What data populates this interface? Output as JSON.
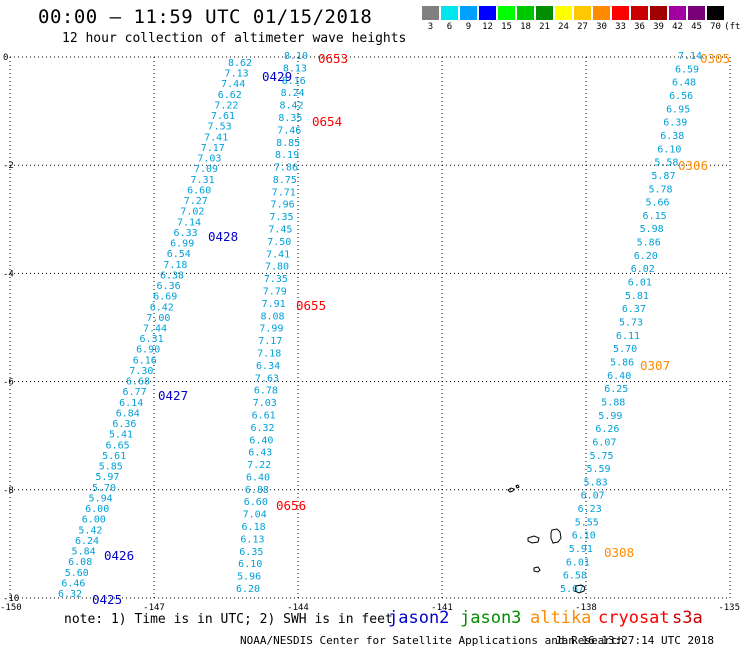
{
  "header": {
    "title": "00:00 – 11:59 UTC 01/15/2018",
    "subtitle": "12 hour collection of altimeter wave heights"
  },
  "legend": {
    "unit": "(ft)",
    "bins": [
      {
        "label": "3",
        "color": "#808080"
      },
      {
        "label": "6",
        "color": "#00e5ee"
      },
      {
        "label": "9",
        "color": "#00a0ff"
      },
      {
        "label": "12",
        "color": "#0000ff"
      },
      {
        "label": "15",
        "color": "#00ff00"
      },
      {
        "label": "18",
        "color": "#00c800"
      },
      {
        "label": "21",
        "color": "#008c00"
      },
      {
        "label": "24",
        "color": "#ffff00"
      },
      {
        "label": "27",
        "color": "#ffc800"
      },
      {
        "label": "30",
        "color": "#ff8c00"
      },
      {
        "label": "33",
        "color": "#ff0000"
      },
      {
        "label": "36",
        "color": "#c80000"
      },
      {
        "label": "39",
        "color": "#a00000"
      },
      {
        "label": "42",
        "color": "#a000a0"
      },
      {
        "label": "45",
        "color": "#780078"
      },
      {
        "label": "70",
        "color": "#000000"
      }
    ]
  },
  "axes": {
    "lat_labels": [
      "0",
      "-2",
      "-4",
      "-6",
      "-8",
      "-10"
    ],
    "lon_labels": [
      "-150",
      "-147",
      "-144",
      "-141",
      "-138",
      "-135"
    ]
  },
  "colors": {
    "swh_text": "#00a0d8",
    "jason2": "#0000cc",
    "jason3": "#008c00",
    "altika": "#ff8c00",
    "cryosat": "#ff0000",
    "s3a": "#c80000",
    "grid": "#000000"
  },
  "tracks": [
    {
      "id": "track-a",
      "times": [
        "0429",
        "0428",
        "0427",
        "0426",
        "0425"
      ],
      "time_color": "jason2",
      "swh": [
        "8.62",
        "7.13",
        "7.44",
        "6.62",
        "7.22",
        "7.61",
        "7.53",
        "7.41",
        "7.17",
        "7.03",
        "7.09",
        "7.31",
        "6.60",
        "7.27",
        "7.02",
        "7.14",
        "6.33",
        "6.99",
        "6.54",
        "7.18",
        "6.38",
        "6.36",
        "6.69",
        "6.42",
        "7.00",
        "7.44",
        "6.31",
        "6.90",
        "6.16",
        "7.30",
        "6.68",
        "6.77",
        "6.14",
        "6.84",
        "6.36",
        "5.41",
        "6.65",
        "5.61",
        "5.85",
        "5.97",
        "5.70",
        "5.94",
        "6.00",
        "6.00",
        "5.42",
        "6.24",
        "5.84",
        "6.08",
        "5.60",
        "6.46",
        "6.32"
      ]
    },
    {
      "id": "track-b",
      "times": [
        "0653",
        "0654",
        "0655",
        "0656"
      ],
      "time_color": "cryosat",
      "swh": [
        "8.10",
        "8.13",
        "8.16",
        "8.24",
        "8.42",
        "8.35",
        "7.46",
        "8.85",
        "8.19",
        "7.86",
        "8.75",
        "7.71",
        "7.96",
        "7.35",
        "7.45",
        "7.50",
        "7.41",
        "7.80",
        "7.35",
        "7.79",
        "7.91",
        "8.08",
        "7.99",
        "7.17",
        "7.18",
        "6.34",
        "7.63",
        "6.78",
        "7.03",
        "6.61",
        "6.32",
        "6.40",
        "6.43",
        "7.22",
        "6.40",
        "6.88",
        "6.60",
        "7.04",
        "6.18",
        "6.13",
        "6.35",
        "6.10",
        "5.96",
        "6.20"
      ]
    },
    {
      "id": "track-c",
      "times": [
        "0305",
        "0306",
        "0307",
        "0308"
      ],
      "time_color": "altika",
      "swh": [
        "7.14",
        "6.59",
        "6.48",
        "6.56",
        "6.95",
        "6.39",
        "6.38",
        "6.10",
        "5.58",
        "5.87",
        "5.78",
        "5.66",
        "6.15",
        "5.98",
        "5.86",
        "6.20",
        "6.02",
        "6.01",
        "5.81",
        "6.37",
        "5.73",
        "6.11",
        "5.70",
        "5.86",
        "6.40",
        "6.25",
        "5.88",
        "5.99",
        "6.26",
        "6.07",
        "5.75",
        "5.59",
        "5.83",
        "6.07",
        "6.23",
        "5.55",
        "6.10",
        "5.91",
        "6.01",
        "6.58",
        "5.67"
      ]
    }
  ],
  "footer": {
    "note": "note: 1) Time is in UTC; 2) SWH is in feet",
    "satellites": [
      {
        "name": "jason2",
        "color": "jason2"
      },
      {
        "name": "jason3",
        "color": "jason3"
      },
      {
        "name": "altika",
        "color": "altika"
      },
      {
        "name": "cryosat",
        "color": "cryosat"
      },
      {
        "name": "s3a",
        "color": "s3a"
      }
    ],
    "credit": "NOAA/NESDIS Center for Satellite Applications and Research",
    "timestamp": "Jan 16 13:27:14 UTC 2018"
  }
}
